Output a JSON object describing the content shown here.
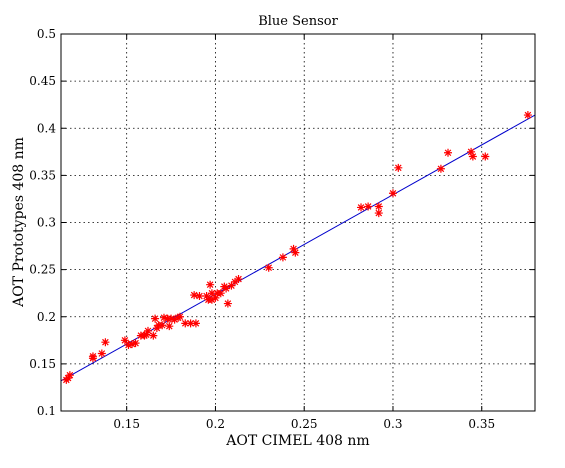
{
  "chart_data": {
    "type": "scatter",
    "title": "Blue Sensor",
    "xlabel": "AOT CIMEL 408 nm",
    "ylabel": "AOT Prototypes 408 nm",
    "xlim": [
      0.113,
      0.38
    ],
    "ylim": [
      0.1,
      0.5
    ],
    "xticks": [
      "0.15",
      "0.2",
      "0.25",
      "0.3",
      "0.35"
    ],
    "xtick_values": [
      0.15,
      0.2,
      0.25,
      0.3,
      0.35
    ],
    "yticks": [
      "0.1",
      "0.15",
      "0.2",
      "0.25",
      "0.3",
      "0.35",
      "0.4",
      "0.45",
      "0.5"
    ],
    "ytick_values": [
      0.1,
      0.15,
      0.2,
      0.25,
      0.3,
      0.35,
      0.4,
      0.45,
      0.5
    ],
    "grid": true,
    "marker": "*",
    "marker_color": "#ff0000",
    "line_color": "#0000cc",
    "fit_line": {
      "x": [
        0.113,
        0.38
      ],
      "y": [
        0.132,
        0.414
      ]
    },
    "series": [
      {
        "x": [
          0.116,
          0.117,
          0.118,
          0.131,
          0.131,
          0.136,
          0.138,
          0.149,
          0.151,
          0.153,
          0.155,
          0.158,
          0.16,
          0.161,
          0.162,
          0.165,
          0.166,
          0.167,
          0.168,
          0.17,
          0.171,
          0.173,
          0.174,
          0.175,
          0.177,
          0.179,
          0.18,
          0.183,
          0.186,
          0.188,
          0.189,
          0.191,
          0.195,
          0.196,
          0.197,
          0.198,
          0.198,
          0.2,
          0.201,
          0.203,
          0.205,
          0.206,
          0.207,
          0.209,
          0.211,
          0.213,
          0.23,
          0.238,
          0.244,
          0.245,
          0.282,
          0.286,
          0.292,
          0.292,
          0.3,
          0.303,
          0.327,
          0.331,
          0.344,
          0.345,
          0.352,
          0.376
        ],
        "y": [
          0.133,
          0.135,
          0.138,
          0.158,
          0.156,
          0.161,
          0.173,
          0.175,
          0.17,
          0.171,
          0.172,
          0.18,
          0.18,
          0.181,
          0.185,
          0.18,
          0.198,
          0.188,
          0.191,
          0.191,
          0.199,
          0.198,
          0.19,
          0.198,
          0.197,
          0.199,
          0.2,
          0.193,
          0.193,
          0.223,
          0.193,
          0.222,
          0.222,
          0.218,
          0.234,
          0.225,
          0.218,
          0.22,
          0.225,
          0.225,
          0.232,
          0.23,
          0.214,
          0.233,
          0.237,
          0.24,
          0.252,
          0.263,
          0.272,
          0.268,
          0.316,
          0.317,
          0.317,
          0.31,
          0.331,
          0.358,
          0.357,
          0.374,
          0.375,
          0.37,
          0.37,
          0.414
        ]
      }
    ]
  }
}
